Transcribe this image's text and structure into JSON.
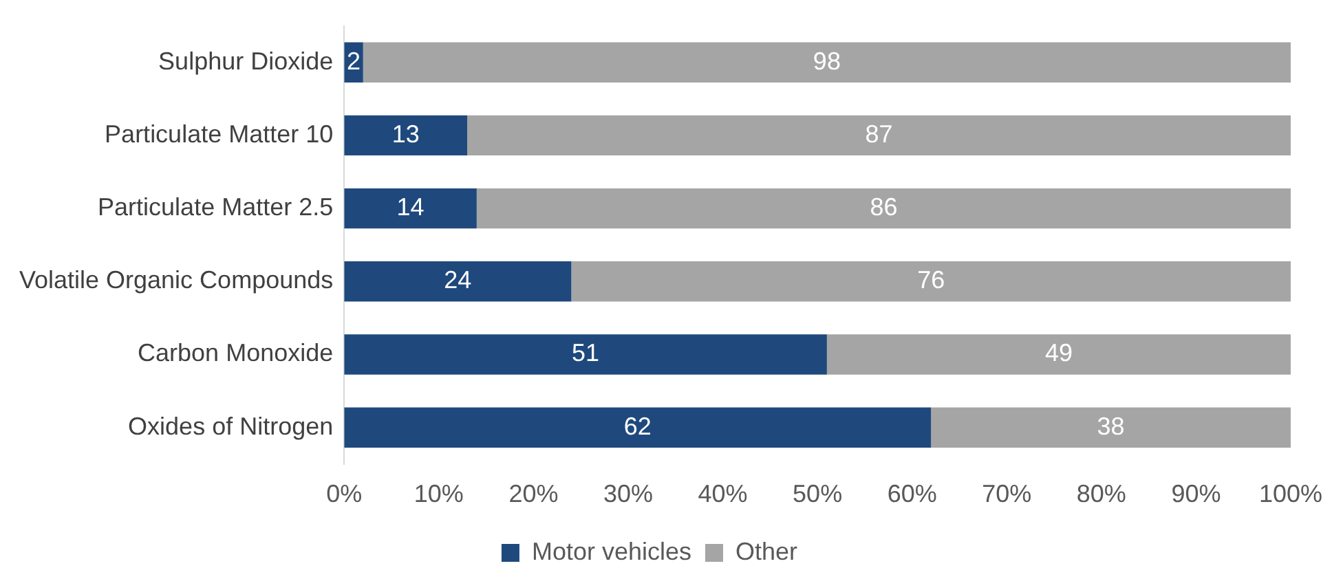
{
  "chart_data": {
    "type": "bar",
    "orientation": "horizontal",
    "stacked": true,
    "categories": [
      "Sulphur Dioxide",
      "Particulate Matter 10",
      "Particulate Matter 2.5",
      "Volatile Organic Compounds",
      "Carbon Monoxide",
      "Oxides of Nitrogen"
    ],
    "series": [
      {
        "name": "Motor vehicles",
        "color": "#1f497d",
        "values": [
          2,
          13,
          14,
          24,
          51,
          62
        ]
      },
      {
        "name": "Other",
        "color": "#a5a5a5",
        "values": [
          98,
          87,
          86,
          76,
          49,
          38
        ]
      }
    ],
    "xlim": [
      0,
      100
    ],
    "xticks": [
      {
        "value": 0,
        "label": "0%"
      },
      {
        "value": 10,
        "label": "10%"
      },
      {
        "value": 20,
        "label": "20%"
      },
      {
        "value": 30,
        "label": "30%"
      },
      {
        "value": 40,
        "label": "40%"
      },
      {
        "value": 50,
        "label": "50%"
      },
      {
        "value": 60,
        "label": "60%"
      },
      {
        "value": 70,
        "label": "70%"
      },
      {
        "value": 80,
        "label": "80%"
      },
      {
        "value": 90,
        "label": "90%"
      },
      {
        "value": 100,
        "label": "100%"
      }
    ],
    "data_labels": true,
    "grid": false,
    "legend": "bottom"
  }
}
